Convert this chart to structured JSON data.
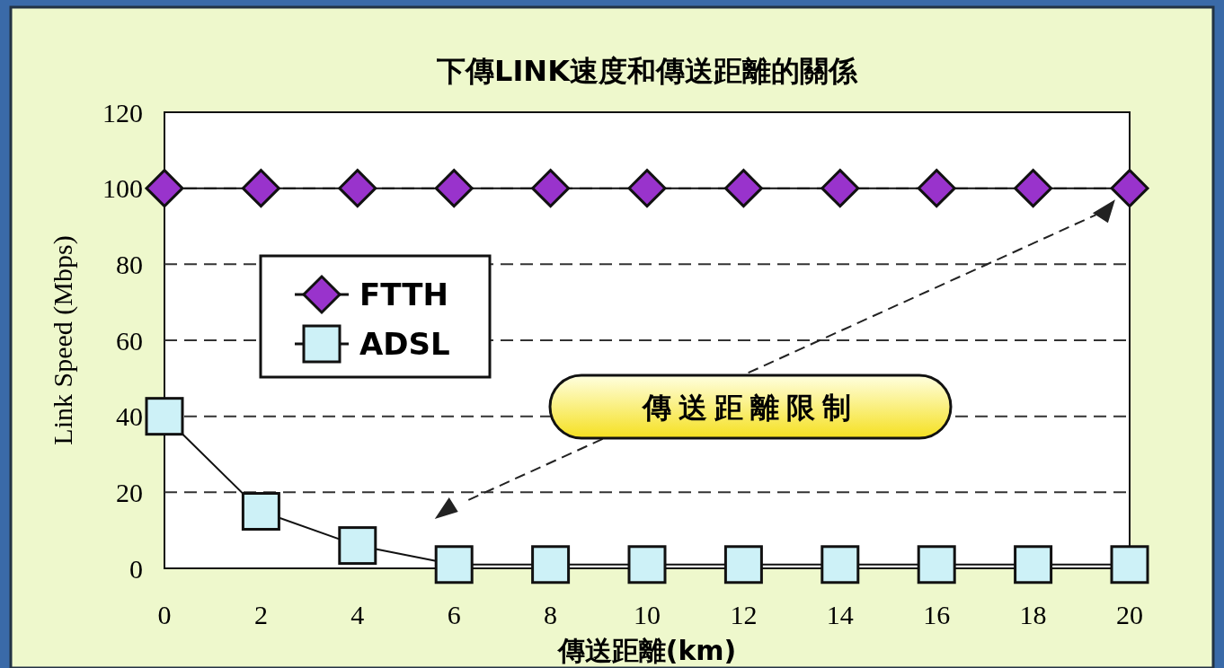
{
  "chart_data": {
    "type": "line",
    "title": "下傳LINK速度和傳送距離的關係",
    "xlabel": "傳送距離(km)",
    "ylabel": "Link Speed (Mbps)",
    "x": [
      0,
      2,
      4,
      6,
      8,
      10,
      12,
      14,
      16,
      18,
      20
    ],
    "series": [
      {
        "name": "FTTH",
        "color": "#9933cc",
        "marker": "diamond",
        "values": [
          100,
          100,
          100,
          100,
          100,
          100,
          100,
          100,
          100,
          100,
          100
        ]
      },
      {
        "name": "ADSL",
        "color": "#cdf1f7",
        "marker": "square",
        "values": [
          40,
          15,
          6,
          1,
          1,
          1,
          1,
          1,
          1,
          1,
          1
        ]
      }
    ],
    "xlim": [
      0,
      20
    ],
    "xticks": [
      0,
      2,
      4,
      6,
      8,
      10,
      12,
      14,
      16,
      18,
      20
    ],
    "ylim": [
      0,
      120
    ],
    "yticks": [
      0,
      20,
      40,
      60,
      80,
      100,
      120
    ],
    "grid": "y",
    "legend": "top left",
    "line_style": "solid",
    "annotations": [
      "傳送距離限制"
    ]
  }
}
